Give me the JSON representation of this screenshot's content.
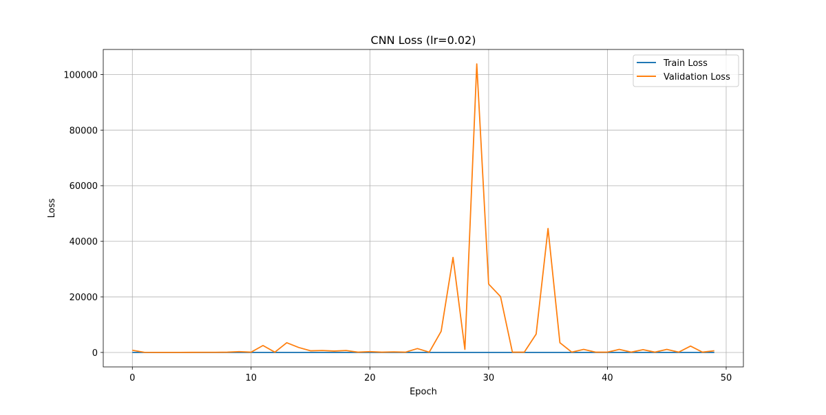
{
  "chart_data": {
    "type": "line",
    "title": "CNN Loss (lr=0.02)",
    "xlabel": "Epoch",
    "ylabel": "Loss",
    "xlim": [
      -2.45,
      51.45
    ],
    "ylim": [
      -5200,
      109000
    ],
    "xticks": [
      0,
      10,
      20,
      30,
      40,
      50
    ],
    "yticks": [
      0,
      20000,
      40000,
      60000,
      80000,
      100000
    ],
    "grid": true,
    "legend_position": "top-right",
    "x": [
      0,
      1,
      2,
      3,
      4,
      5,
      6,
      7,
      8,
      9,
      10,
      11,
      12,
      13,
      14,
      15,
      16,
      17,
      18,
      19,
      20,
      21,
      22,
      23,
      24,
      25,
      26,
      27,
      28,
      29,
      30,
      31,
      32,
      33,
      34,
      35,
      36,
      37,
      38,
      39,
      40,
      41,
      42,
      43,
      44,
      45,
      46,
      47,
      48,
      49
    ],
    "series": [
      {
        "name": "Train Loss",
        "color": "#1f77b4",
        "values": [
          2,
          2,
          2,
          2,
          2,
          2,
          2,
          2,
          2,
          2,
          2,
          2,
          2,
          2,
          2,
          2,
          2,
          2,
          2,
          2,
          2,
          2,
          2,
          2,
          2,
          2,
          2,
          2,
          2,
          2,
          2,
          2,
          2,
          2,
          2,
          2,
          2,
          2,
          2,
          2,
          2,
          2,
          2,
          2,
          2,
          2,
          2,
          2,
          2,
          2
        ]
      },
      {
        "name": "Validation Loss",
        "color": "#ff7f0e",
        "values": [
          800,
          50,
          30,
          30,
          30,
          40,
          50,
          60,
          100,
          300,
          100,
          2500,
          100,
          3500,
          1800,
          600,
          700,
          500,
          700,
          100,
          300,
          100,
          200,
          100,
          1400,
          100,
          7600,
          34200,
          1100,
          103800,
          24600,
          20100,
          100,
          100,
          6600,
          44600,
          3500,
          100,
          1100,
          100,
          100,
          1100,
          100,
          1000,
          100,
          1100,
          100,
          2300,
          100,
          600
        ]
      }
    ]
  }
}
